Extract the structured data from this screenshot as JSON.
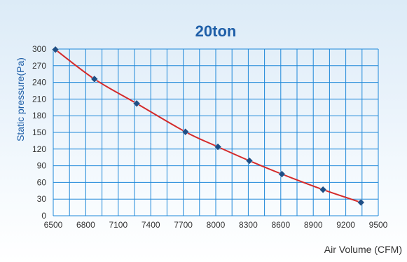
{
  "chart_data": {
    "type": "line",
    "title": "20ton",
    "xlabel": "Air Volume (CFM)",
    "ylabel": "Static pressure(Pa)",
    "xlim": [
      6500,
      9500
    ],
    "ylim": [
      0,
      300
    ],
    "xticks": [
      6500,
      6800,
      7100,
      7400,
      7700,
      8000,
      8300,
      8600,
      8900,
      9200,
      9500
    ],
    "yticks": [
      0,
      30,
      60,
      90,
      120,
      150,
      180,
      210,
      240,
      270,
      300
    ],
    "grid": true,
    "x_minor_step": 150,
    "colors": {
      "grid": "#1e88d9",
      "line": "#d42a2a",
      "marker": "#1f4f86",
      "title": "#1f5fa8"
    },
    "series": [
      {
        "x": [
          6520,
          6880,
          7270,
          7720,
          8020,
          8310,
          8610,
          8990,
          9340
        ],
        "values": [
          299,
          246,
          202,
          151,
          124,
          99,
          75,
          47,
          24
        ]
      }
    ]
  }
}
